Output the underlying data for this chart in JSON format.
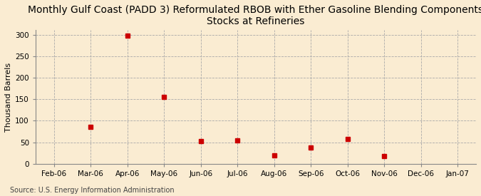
{
  "title": "Monthly Gulf Coast (PADD 3) Reformulated RBOB with Ether Gasoline Blending Components\nStocks at Refineries",
  "ylabel": "Thousand Barrels",
  "source": "Source: U.S. Energy Information Administration",
  "background_color": "#faecd2",
  "plot_bg_color": "#faecd2",
  "x_labels": [
    "Feb-06",
    "Mar-06",
    "Apr-06",
    "May-06",
    "Jun-06",
    "Jul-06",
    "Aug-06",
    "Sep-06",
    "Oct-06",
    "Nov-06",
    "Dec-06",
    "Jan-07"
  ],
  "x_positions": [
    0,
    1,
    2,
    3,
    4,
    5,
    6,
    7,
    8,
    9,
    10,
    11
  ],
  "data_x": [
    1,
    2,
    3,
    4,
    5,
    6,
    7,
    8,
    9
  ],
  "data_y": [
    85,
    298,
    155,
    53,
    55,
    20,
    38,
    57,
    18
  ],
  "marker_color": "#cc0000",
  "marker_size": 4,
  "ylim": [
    0,
    310
  ],
  "yticks": [
    0,
    50,
    100,
    150,
    200,
    250,
    300
  ],
  "grid_color": "#aaaaaa",
  "title_fontsize": 10,
  "axis_fontsize": 8,
  "tick_fontsize": 7.5,
  "source_fontsize": 7
}
